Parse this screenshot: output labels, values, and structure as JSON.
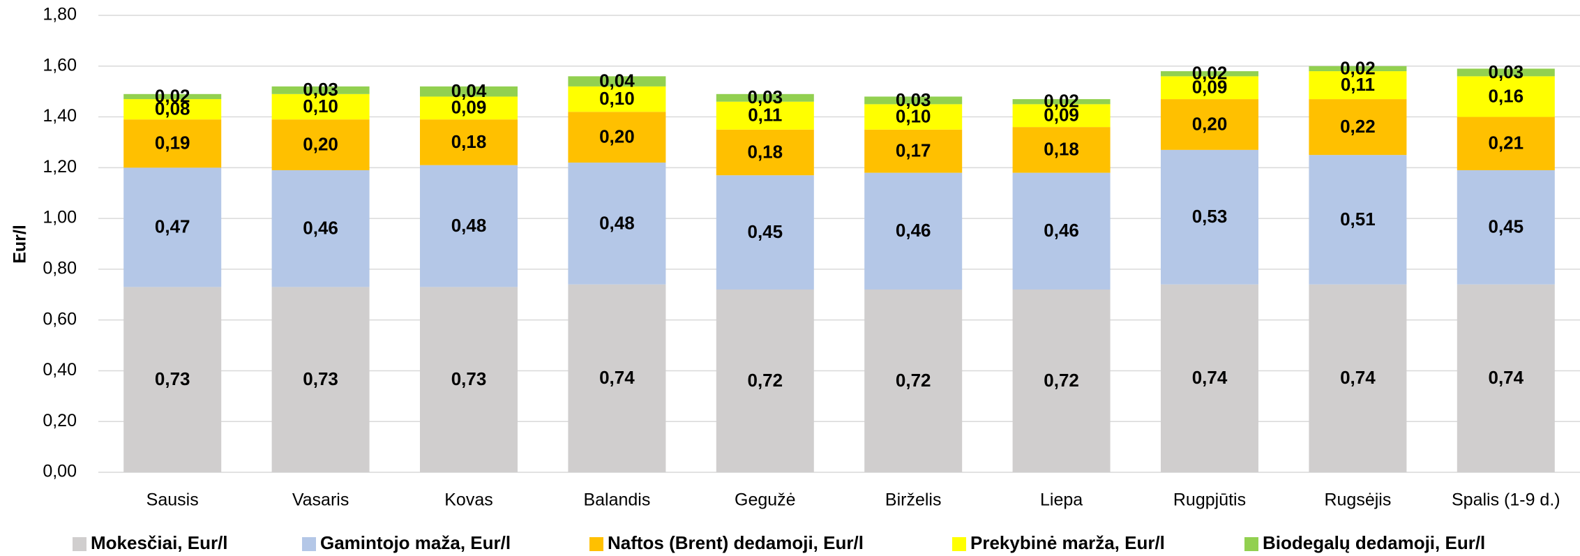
{
  "chart_data": {
    "type": "stacked_bar",
    "y_label": "Eur/l",
    "categories": [
      "Sausis",
      "Vasaris",
      "Kovas",
      "Balandis",
      "Gegužė",
      "Birželis",
      "Liepa",
      "Rugpjūtis",
      "Rugsėjis",
      "Spalis (1-9 d.)"
    ],
    "series": [
      {
        "name": "Mokesčiai, Eur/l",
        "color": "#d0cece",
        "values": [
          0.73,
          0.73,
          0.73,
          0.74,
          0.72,
          0.72,
          0.72,
          0.74,
          0.74,
          0.74
        ],
        "value_labels": [
          "0,73",
          "0,73",
          "0,73",
          "0,74",
          "0,72",
          "0,72",
          "0,72",
          "0,74",
          "0,74",
          "0,74"
        ]
      },
      {
        "name": "Gamintojo maža, Eur/l",
        "color": "#b4c7e7",
        "values": [
          0.47,
          0.46,
          0.48,
          0.48,
          0.45,
          0.46,
          0.46,
          0.53,
          0.51,
          0.45
        ],
        "value_labels": [
          "0,47",
          "0,46",
          "0,48",
          "0,48",
          "0,45",
          "0,46",
          "0,46",
          "0,53",
          "0,51",
          "0,45"
        ]
      },
      {
        "name": "Naftos (Brent) dedamoji, Eur/l",
        "color": "#ffc000",
        "values": [
          0.19,
          0.2,
          0.18,
          0.2,
          0.18,
          0.17,
          0.18,
          0.2,
          0.22,
          0.21
        ],
        "value_labels": [
          "0,19",
          "0,20",
          "0,18",
          "0,20",
          "0,18",
          "0,17",
          "0,18",
          "0,20",
          "0,22",
          "0,21"
        ]
      },
      {
        "name": "Prekybinė marža, Eur/l",
        "color": "#ffff00",
        "values": [
          0.08,
          0.1,
          0.09,
          0.1,
          0.11,
          0.1,
          0.09,
          0.09,
          0.11,
          0.16
        ],
        "value_labels": [
          "0,08",
          "0,10",
          "0,09",
          "0,10",
          "0,11",
          "0,10",
          "0,09",
          "0,09",
          "0,11",
          "0,16"
        ]
      },
      {
        "name": "Biodegalų dedamoji, Eur/l",
        "color": "#92d050",
        "values": [
          0.02,
          0.03,
          0.04,
          0.04,
          0.03,
          0.03,
          0.02,
          0.02,
          0.02,
          0.03
        ],
        "value_labels": [
          "0,02",
          "0,03",
          "0,04",
          "0,04",
          "0,03",
          "0,03",
          "0,02",
          "0,02",
          "0,02",
          "0,03"
        ]
      }
    ],
    "ylim": [
      0,
      1.8
    ],
    "yticks": [
      {
        "value": 0,
        "label": "0,00"
      },
      {
        "value": 0.2,
        "label": "0,20"
      },
      {
        "value": 0.4,
        "label": "0,40"
      },
      {
        "value": 0.6,
        "label": "0,60"
      },
      {
        "value": 0.8,
        "label": "0,80"
      },
      {
        "value": 1.0,
        "label": "1,00"
      },
      {
        "value": 1.2,
        "label": "1,20"
      },
      {
        "value": 1.4,
        "label": "1,40"
      },
      {
        "value": 1.6,
        "label": "1,60"
      },
      {
        "value": 1.8,
        "label": "1,80"
      }
    ],
    "grid": true,
    "legend": "bottom"
  }
}
